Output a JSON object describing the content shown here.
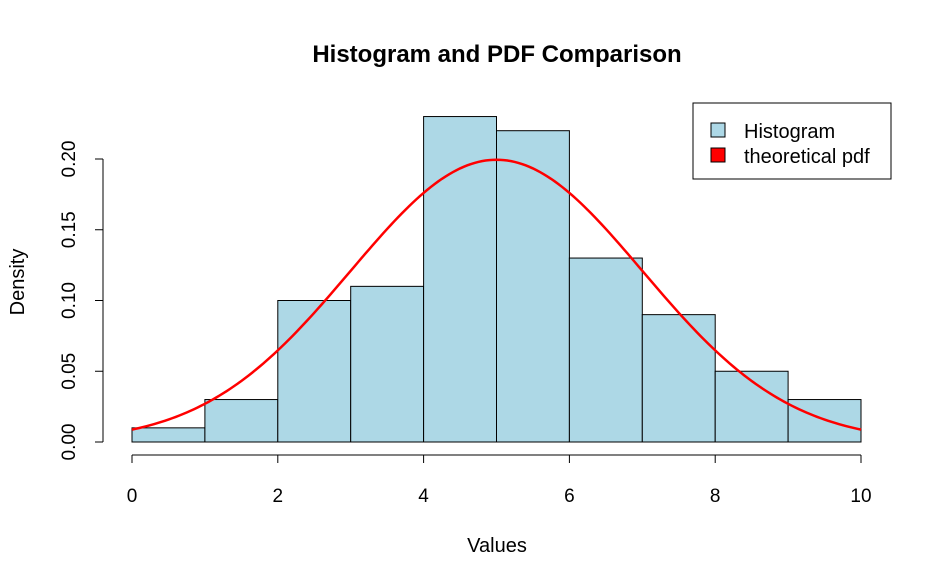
{
  "chart_data": {
    "type": "bar",
    "title": "Histogram and PDF Comparison",
    "xlabel": "Values",
    "ylabel": "Density",
    "xlim": [
      0,
      10
    ],
    "ylim": [
      0,
      0.2
    ],
    "x_ticks": [
      "0",
      "2",
      "4",
      "6",
      "8",
      "10"
    ],
    "y_ticks": [
      "0.00",
      "0.05",
      "0.10",
      "0.15",
      "0.20"
    ],
    "bin_edges": [
      0,
      1,
      2,
      3,
      4,
      5,
      6,
      7,
      8,
      9,
      10
    ],
    "series": [
      {
        "name": "Histogram",
        "type": "histogram",
        "bins": [
          {
            "from": 0,
            "to": 1,
            "density": 0.01
          },
          {
            "from": 1,
            "to": 2,
            "density": 0.03
          },
          {
            "from": 2,
            "to": 3,
            "density": 0.1
          },
          {
            "from": 3,
            "to": 4,
            "density": 0.11
          },
          {
            "from": 4,
            "to": 5,
            "density": 0.23
          },
          {
            "from": 5,
            "to": 6,
            "density": 0.22
          },
          {
            "from": 6,
            "to": 7,
            "density": 0.13
          },
          {
            "from": 7,
            "to": 8,
            "density": 0.09
          },
          {
            "from": 8,
            "to": 9,
            "density": 0.05
          },
          {
            "from": 9,
            "to": 10,
            "density": 0.03
          }
        ],
        "color": "#add8e6"
      },
      {
        "name": "theoretical pdf",
        "type": "line",
        "distribution": "normal",
        "mean": 5,
        "sd": 2,
        "x_range": [
          0,
          10
        ],
        "color": "#ff0000"
      }
    ],
    "legend": {
      "placement": "top-right",
      "entries": [
        "Histogram",
        "theoretical pdf"
      ]
    },
    "grid": false
  }
}
